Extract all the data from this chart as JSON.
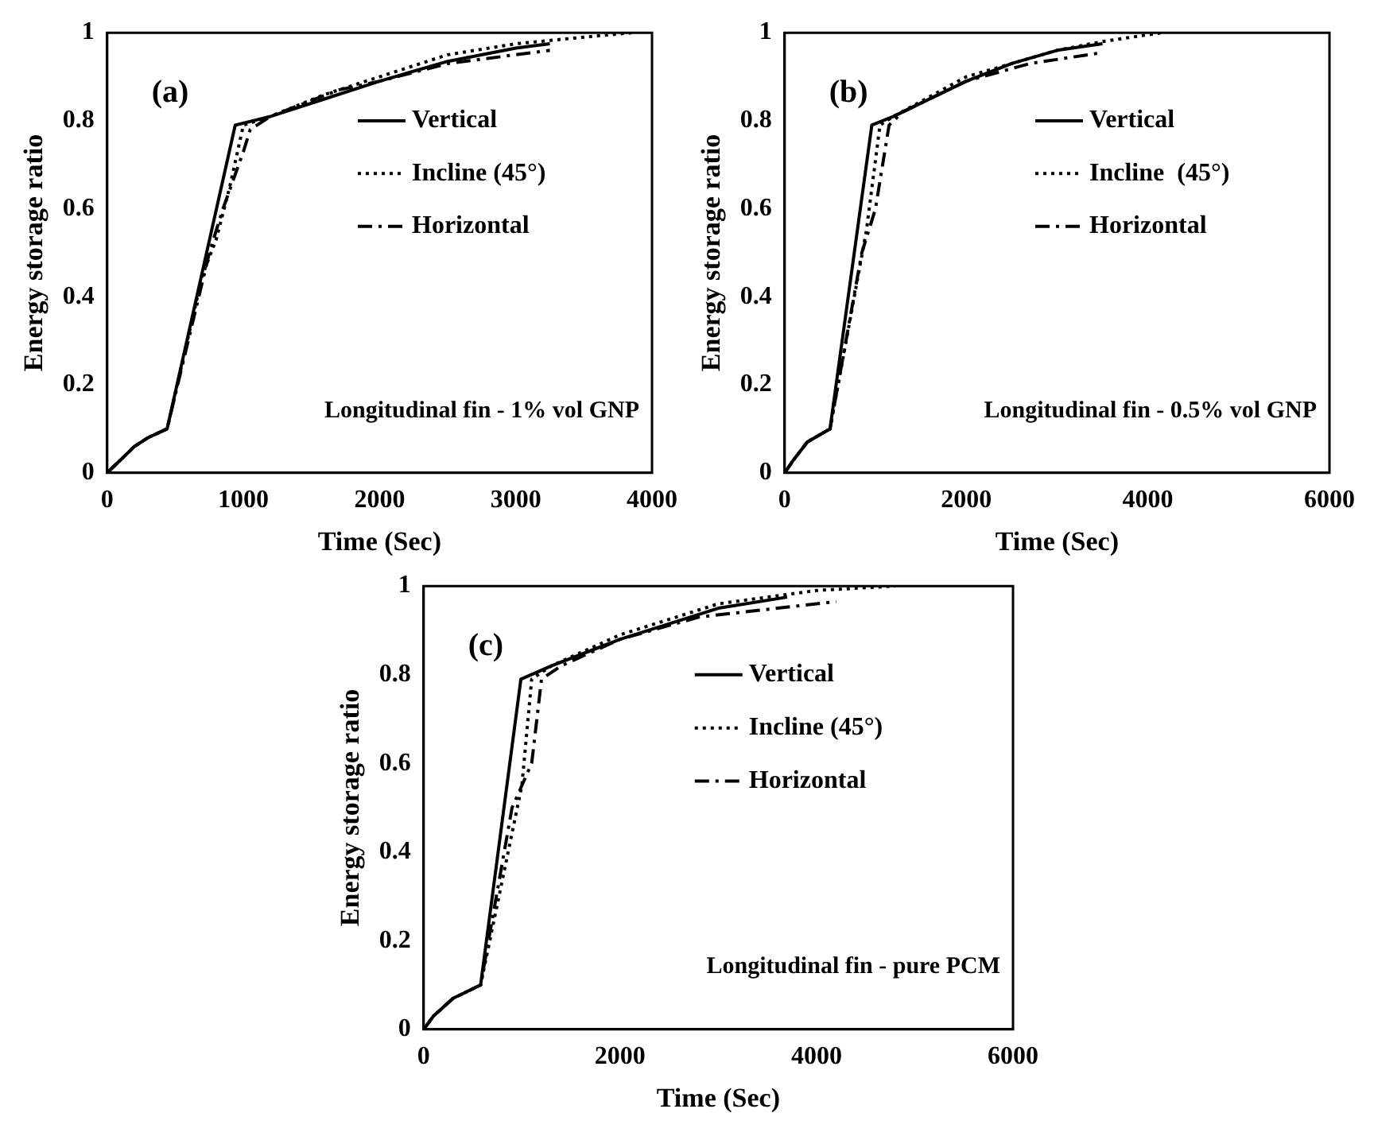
{
  "chart_data": [
    {
      "type": "line",
      "xlabel": "Time (Sec)",
      "ylabel": "Energy storage ratio",
      "annotations": [
        "(a)",
        "Longitudinal fin - 1% vol GNP"
      ],
      "xlim": [
        0,
        4000
      ],
      "xticks": [
        0,
        1000,
        2000,
        3000,
        4000
      ],
      "ylim": [
        0,
        1
      ],
      "yticks": [
        0,
        0.2,
        0.4,
        0.6,
        0.8,
        1
      ],
      "grid": false,
      "legend": "top right",
      "marker": "none",
      "series": [
        {
          "name": "Vertical",
          "color": "#000000",
          "line_style": "solid",
          "x": [
            0,
            100,
            200,
            300,
            440,
            940,
            1200,
            1600,
            2000,
            2500,
            3000,
            3250
          ],
          "values": [
            0,
            0.03,
            0.06,
            0.08,
            0.1,
            0.79,
            0.81,
            0.85,
            0.89,
            0.935,
            0.965,
            0.975
          ]
        },
        {
          "name": "Incline (45°)",
          "color": "#000000",
          "line_style": "dotted",
          "x": [
            0,
            100,
            200,
            300,
            440,
            700,
            800,
            900,
            1000,
            1200,
            1600,
            2000,
            2500,
            3000,
            3500,
            3850
          ],
          "values": [
            0,
            0.03,
            0.06,
            0.08,
            0.1,
            0.45,
            0.53,
            0.65,
            0.79,
            0.81,
            0.86,
            0.9,
            0.95,
            0.975,
            0.99,
            1
          ]
        },
        {
          "name": "Horizontal",
          "color": "#000000",
          "line_style": "dashed",
          "x": [
            0,
            100,
            200,
            300,
            440,
            750,
            850,
            1000,
            1050,
            1200,
            1700,
            2000,
            2500,
            3000,
            3250
          ],
          "values": [
            0,
            0.03,
            0.06,
            0.08,
            0.1,
            0.5,
            0.6,
            0.73,
            0.78,
            0.81,
            0.87,
            0.89,
            0.93,
            0.95,
            0.96
          ]
        }
      ]
    },
    {
      "type": "line",
      "xlabel": "Time (Sec)",
      "ylabel": "Energy storage ratio",
      "annotations": [
        "(b)",
        "Longitudinal fin - 0.5% vol GNP"
      ],
      "xlim": [
        0,
        6000
      ],
      "xticks": [
        0,
        2000,
        4000,
        6000
      ],
      "ylim": [
        0,
        1
      ],
      "yticks": [
        0,
        0.2,
        0.4,
        0.6,
        0.8,
        1
      ],
      "grid": false,
      "legend": "top right",
      "marker": "none",
      "series": [
        {
          "name": "Vertical",
          "color": "#000000",
          "line_style": "solid",
          "x": [
            0,
            100,
            250,
            500,
            960,
            1200,
            2000,
            2500,
            3000,
            3500
          ],
          "values": [
            0,
            0.03,
            0.07,
            0.1,
            0.79,
            0.81,
            0.89,
            0.93,
            0.96,
            0.975
          ]
        },
        {
          "name": "Incline  (45°)",
          "color": "#000000",
          "line_style": "dotted",
          "x": [
            0,
            100,
            250,
            500,
            900,
            1050,
            1200,
            2000,
            3000,
            3500,
            4150
          ],
          "values": [
            0,
            0.03,
            0.07,
            0.1,
            0.55,
            0.79,
            0.81,
            0.9,
            0.96,
            0.98,
            1
          ]
        },
        {
          "name": "Horizontal",
          "color": "#000000",
          "line_style": "dashed",
          "x": [
            0,
            100,
            250,
            500,
            850,
            1000,
            1150,
            1300,
            2000,
            2700,
            3500
          ],
          "values": [
            0,
            0.03,
            0.07,
            0.1,
            0.5,
            0.6,
            0.79,
            0.82,
            0.89,
            0.93,
            0.955
          ]
        }
      ]
    },
    {
      "type": "line",
      "xlabel": "Time (Sec)",
      "ylabel": "Energy storage ratio",
      "annotations": [
        "(c)",
        "Longitudinal fin - pure PCM"
      ],
      "xlim": [
        0,
        6000
      ],
      "xticks": [
        0,
        2000,
        4000,
        6000
      ],
      "ylim": [
        0,
        1
      ],
      "yticks": [
        0,
        0.2,
        0.4,
        0.6,
        0.8,
        1
      ],
      "grid": false,
      "legend": "top right",
      "marker": "none",
      "series": [
        {
          "name": "Vertical",
          "color": "#000000",
          "line_style": "solid",
          "x": [
            0,
            100,
            300,
            580,
            990,
            1300,
            2000,
            3000,
            3700
          ],
          "values": [
            0,
            0.03,
            0.07,
            0.1,
            0.79,
            0.82,
            0.88,
            0.95,
            0.975
          ]
        },
        {
          "name": "Incline (45°)",
          "color": "#000000",
          "line_style": "dotted",
          "x": [
            0,
            100,
            300,
            580,
            1000,
            1100,
            1300,
            2000,
            3000,
            4000,
            4800
          ],
          "values": [
            0,
            0.03,
            0.07,
            0.1,
            0.55,
            0.79,
            0.82,
            0.89,
            0.96,
            0.99,
            1
          ]
        },
        {
          "name": "Horizontal",
          "color": "#000000",
          "line_style": "dashed",
          "x": [
            0,
            100,
            300,
            580,
            900,
            1100,
            1200,
            1400,
            2000,
            2800,
            4200
          ],
          "values": [
            0,
            0.03,
            0.07,
            0.1,
            0.5,
            0.6,
            0.79,
            0.82,
            0.88,
            0.93,
            0.965
          ]
        }
      ]
    }
  ]
}
